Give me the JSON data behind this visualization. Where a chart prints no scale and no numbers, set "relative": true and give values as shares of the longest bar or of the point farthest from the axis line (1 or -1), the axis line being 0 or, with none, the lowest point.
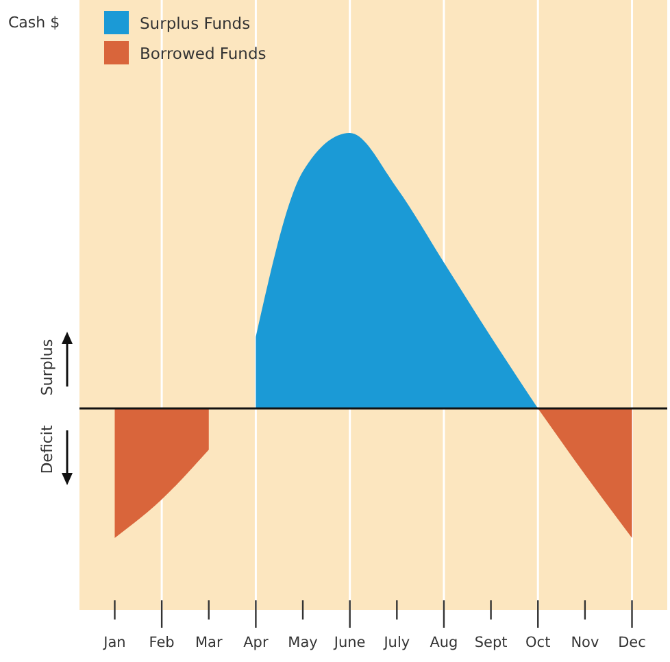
{
  "chart_data": {
    "type": "area",
    "relative": true,
    "annotations": [
      "Cash $",
      "Surplus",
      "Deficit"
    ],
    "categories": [
      "Jan",
      "Feb",
      "Mar",
      "Apr",
      "May",
      "June",
      "July",
      "Aug",
      "Sept",
      "Oct",
      "Nov",
      "Dec"
    ],
    "legend": "top left",
    "grid": "x",
    "series": [
      {
        "name": "Surplus Funds",
        "color": "#1b9ad6",
        "values": [
          null,
          null,
          null,
          0.26,
          0.86,
          1,
          0.8,
          0.53,
          0.26,
          0,
          null,
          null
        ]
      },
      {
        "name": "Borrowed Funds",
        "color": "#d9653b",
        "values": [
          -0.47,
          -0.33,
          -0.15,
          null,
          null,
          null,
          null,
          null,
          null,
          0,
          -0.24,
          -0.47
        ]
      }
    ]
  }
}
